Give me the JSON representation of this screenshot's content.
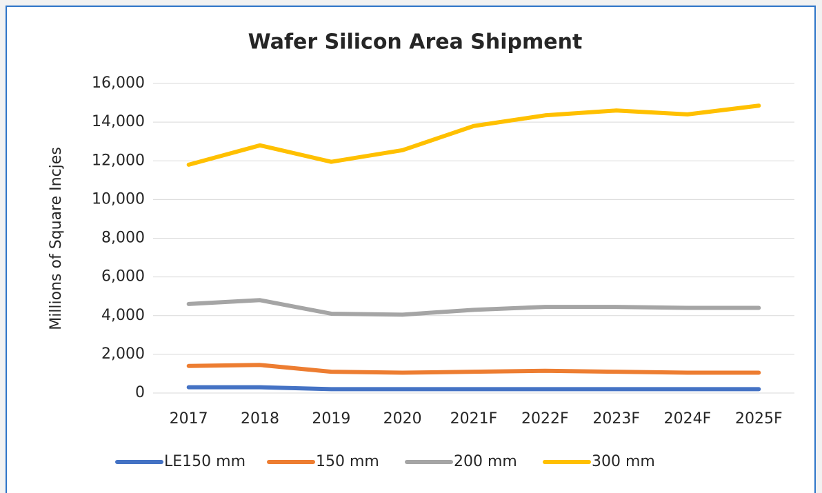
{
  "chart_data": {
    "type": "line",
    "title": "Wafer Silicon Area Shipment",
    "y_label": "Millions of Square Incjes",
    "categories": [
      "2017",
      "2018",
      "2019",
      "2020",
      "2021F",
      "2022F",
      "2023F",
      "2024F",
      "2025F"
    ],
    "series": [
      {
        "name": "LE150 mm",
        "color": "#4472c4",
        "values": [
          300,
          300,
          200,
          200,
          200,
          200,
          200,
          200,
          200
        ]
      },
      {
        "name": "150 mm",
        "color": "#ed7d31",
        "values": [
          1400,
          1450,
          1100,
          1050,
          1100,
          1150,
          1100,
          1050,
          1050
        ]
      },
      {
        "name": "200 mm",
        "color": "#a5a5a5",
        "values": [
          4600,
          4800,
          4100,
          4050,
          4300,
          4450,
          4450,
          4400,
          4400
        ]
      },
      {
        "name": "300 mm",
        "color": "#ffc000",
        "values": [
          11800,
          12800,
          11950,
          12550,
          13800,
          14350,
          14600,
          14400,
          14850
        ]
      }
    ],
    "ylim": [
      0,
      16000
    ],
    "yticks": [
      0,
      {
        "value": 2000,
        "label": "2,000"
      },
      {
        "value": 4000,
        "label": "4,000"
      },
      {
        "value": 6000,
        "label": "6,000"
      },
      {
        "value": 8000,
        "label": "8,000"
      },
      {
        "value": 10000,
        "label": "10,000"
      },
      {
        "value": 12000,
        "label": "12,000"
      },
      {
        "value": 14000,
        "label": "14,000"
      },
      {
        "value": 16000,
        "label": "16,000"
      }
    ],
    "grid": true,
    "legend": "bottom"
  }
}
